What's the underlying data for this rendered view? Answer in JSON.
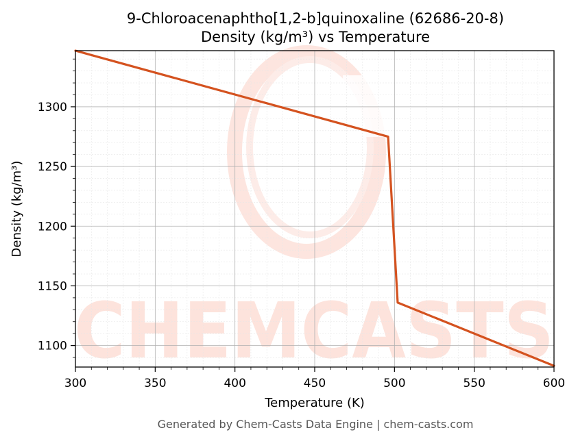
{
  "chart_data": {
    "type": "line",
    "title": "9-Chloroacenaphtho[1,2-b]quinoxaline (62686-20-8)",
    "subtitle": "Density (kg/m³) vs Temperature",
    "xlabel": "Temperature (K)",
    "ylabel": "Density (kg/m³)",
    "xlim": [
      300,
      600
    ],
    "ylim": [
      1082,
      1347
    ],
    "xticks": [
      300,
      350,
      400,
      450,
      500,
      550,
      600
    ],
    "yticks": [
      1100,
      1150,
      1200,
      1250,
      1300
    ],
    "grid": true,
    "minor_grid": true,
    "legend": "none",
    "series": [
      {
        "color": "#d4521f",
        "x": [
          300,
          496,
          502,
          600
        ],
        "y": [
          1347,
          1275,
          1136,
          1083
        ]
      }
    ]
  },
  "watermark": {
    "text": "CHEMCASTS",
    "color": "#fde3dc"
  },
  "footer": {
    "text": "Generated by Chem-Casts Data Engine | chem-casts.com"
  }
}
